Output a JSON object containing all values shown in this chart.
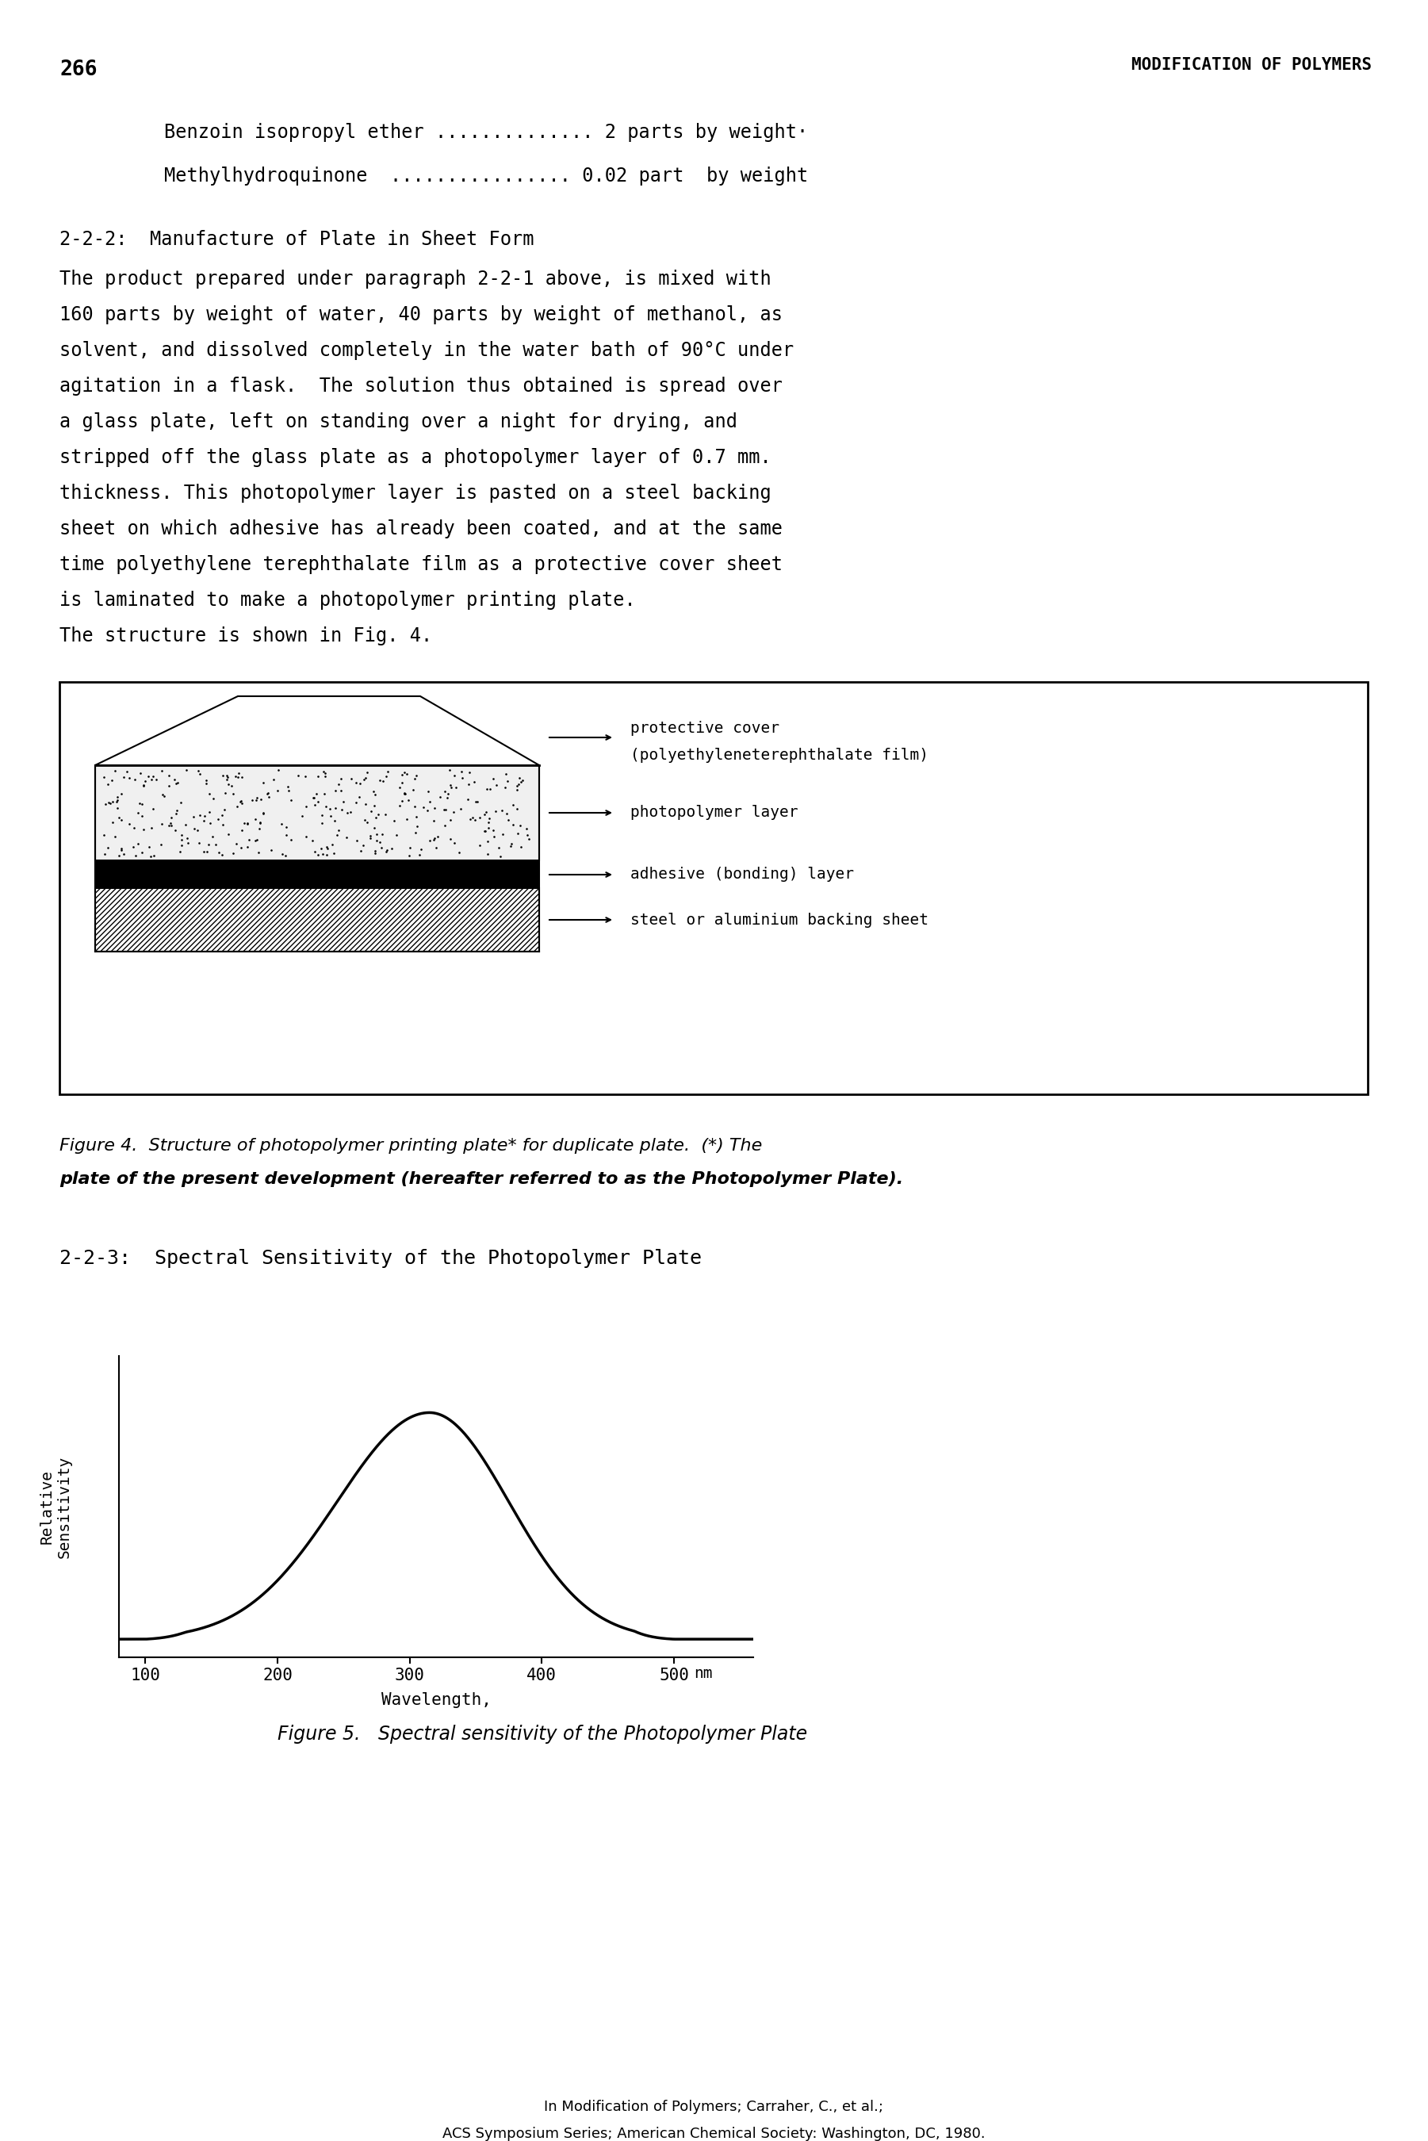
{
  "page_number": "266",
  "header_right": "MODIFICATION OF POLYMERS",
  "line1": "    Benzoin isopropyl ether .............. 2 parts by weight·",
  "line2": "    Methylhydroquinone  ................ 0.02 part  by weight",
  "section_title": "2-2-2:  Manufacture of Plate in Sheet Form",
  "body_text": [
    "The product prepared under paragraph 2-2-1 above, is mixed with",
    "160 parts by weight of water, 40 parts by weight of methanol, as",
    "solvent, and dissolved completely in the water bath of 90°C under",
    "agitation in a flask.  The solution thus obtained is spread over",
    "a glass plate, left on standing over a night for drying, and",
    "stripped off the glass plate as a photopolymer layer of 0.7 mm.",
    "thickness. This photopolymer layer is pasted on a steel backing",
    "sheet on which adhesive has already been coated, and at the same",
    "time polyethylene terephthalate film as a protective cover sheet",
    "is laminated to make a photopolymer printing plate.",
    "The structure is shown in Fig. 4."
  ],
  "fig4_caption_line1": "Figure 4.  Structure of photopolymer printing plate* for duplicate plate.  (*) The",
  "fig4_caption_line2": "plate of the present development (hereafter referred to as the Photopolymer Plate).",
  "section2_title": "2-2-3:  Spectral Sensitivity of the Photopolymer Plate",
  "fig5_caption": "Figure 5.   Spectral sensitivity of the Photopolymer Plate",
  "footer_line1": "In Modification of Polymers; Carraher, C., et al.;",
  "footer_line2": "ACS Symposium Series; American Chemical Society: Washington, DC, 1980.",
  "layer_labels": [
    "protective cover",
    "(polyethyleneterephthalate film)",
    "photopolymer layer",
    "adhesive (bonding) layer",
    "steel or aluminium backing sheet"
  ]
}
